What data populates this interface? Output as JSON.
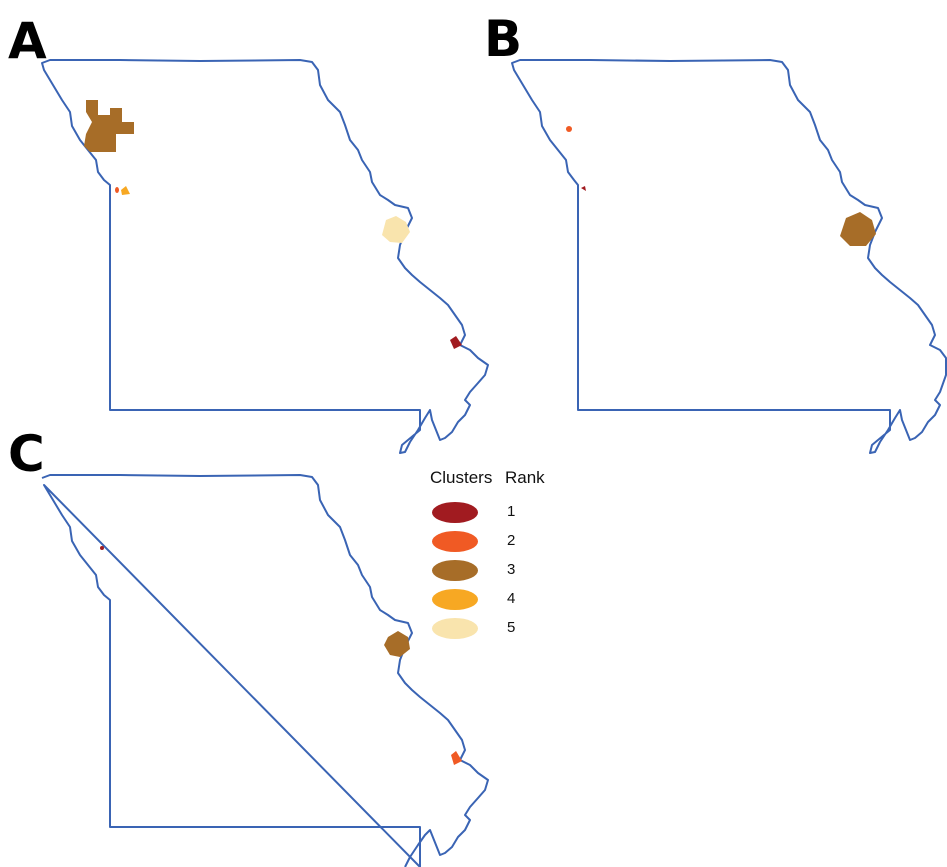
{
  "panels": [
    {
      "id": "A",
      "label": "A"
    },
    {
      "id": "B",
      "label": "B"
    },
    {
      "id": "C",
      "label": "C"
    }
  ],
  "legend": {
    "clusters_header": "Clusters",
    "rank_header": "Rank",
    "items": [
      {
        "rank": "1",
        "color": "#a11b20"
      },
      {
        "rank": "2",
        "color": "#f05a24"
      },
      {
        "rank": "3",
        "color": "#a76d28"
      },
      {
        "rank": "4",
        "color": "#f7a823"
      },
      {
        "rank": "5",
        "color": "#f9e4ad"
      }
    ]
  },
  "colors": {
    "state_outline": "#3a64b4"
  }
}
